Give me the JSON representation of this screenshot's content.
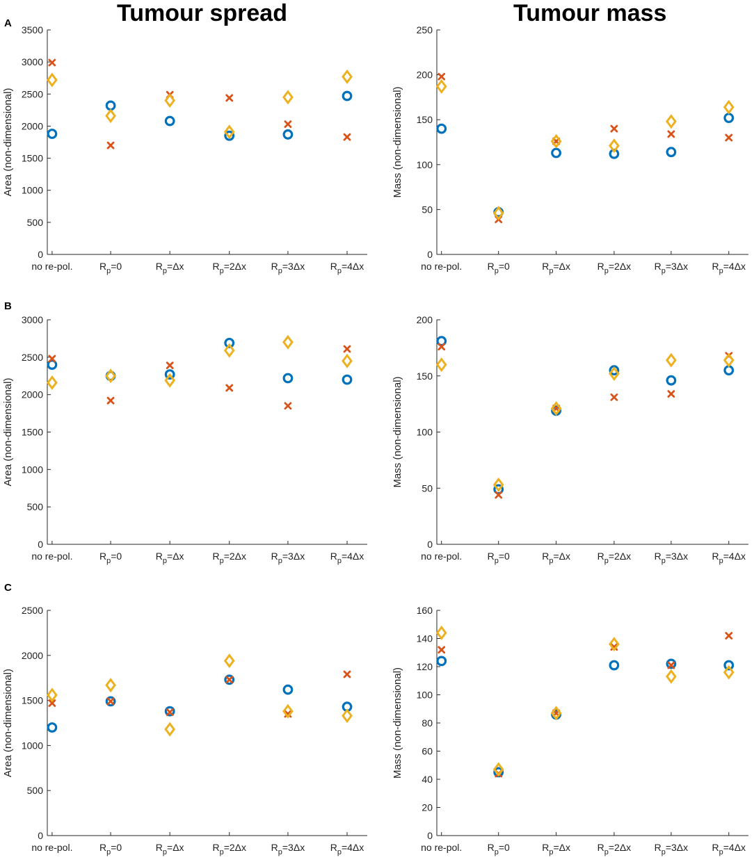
{
  "column_titles": {
    "left": "Tumour spread",
    "right": "Tumour mass"
  },
  "panel_labels": [
    "A",
    "B",
    "C"
  ],
  "colors": {
    "series1": "#0072BD",
    "series2": "#D95319",
    "series3": "#EDB120"
  },
  "chart_data": [
    {
      "type": "scatter",
      "panel": "A",
      "position": "left",
      "title": "Tumour spread",
      "xlabel": "",
      "ylabel": "Area (non-dimensional)",
      "ylim": [
        0,
        3500
      ],
      "yticks": [
        0,
        500,
        1000,
        1500,
        2000,
        2500,
        3000,
        3500
      ],
      "categories": [
        "no re-pol.",
        "Rp=0",
        "Rp=Δx",
        "Rp=2Δx",
        "Rp=3Δx",
        "Rp=4Δx"
      ],
      "series": [
        {
          "name": "circle",
          "marker": "o",
          "values": [
            1880,
            2320,
            2080,
            1850,
            1870,
            2470
          ]
        },
        {
          "name": "cross",
          "marker": "x",
          "values": [
            2990,
            1700,
            2490,
            2440,
            2030,
            1830
          ]
        },
        {
          "name": "diamond",
          "marker": "d",
          "values": [
            2720,
            2160,
            2400,
            1910,
            2450,
            2770
          ]
        }
      ]
    },
    {
      "type": "scatter",
      "panel": "A",
      "position": "right",
      "title": "Tumour mass",
      "xlabel": "",
      "ylabel": "Mass (non-dimensional)",
      "ylim": [
        0,
        250
      ],
      "yticks": [
        0,
        50,
        100,
        150,
        200,
        250
      ],
      "categories": [
        "no re-pol.",
        "Rp=0",
        "Rp=Δx",
        "Rp=2Δx",
        "Rp=3Δx",
        "Rp=4Δx"
      ],
      "series": [
        {
          "name": "circle",
          "marker": "o",
          "values": [
            140,
            47,
            113,
            112,
            114,
            152
          ]
        },
        {
          "name": "cross",
          "marker": "x",
          "values": [
            198,
            39,
            126,
            140,
            134,
            130
          ]
        },
        {
          "name": "diamond",
          "marker": "d",
          "values": [
            187,
            46,
            126,
            121,
            148,
            164
          ]
        }
      ]
    },
    {
      "type": "scatter",
      "panel": "B",
      "position": "left",
      "title": "",
      "xlabel": "",
      "ylabel": "Area (non-dimensional)",
      "ylim": [
        0,
        3000
      ],
      "yticks": [
        0,
        500,
        1000,
        1500,
        2000,
        2500,
        3000
      ],
      "categories": [
        "no re-pol.",
        "Rp=0",
        "Rp=Δx",
        "Rp=2Δx",
        "Rp=3Δx",
        "Rp=4Δx"
      ],
      "series": [
        {
          "name": "circle",
          "marker": "o",
          "values": [
            2400,
            2250,
            2270,
            2690,
            2220,
            2200
          ]
        },
        {
          "name": "cross",
          "marker": "x",
          "values": [
            2480,
            1920,
            2390,
            2090,
            1850,
            2610
          ]
        },
        {
          "name": "diamond",
          "marker": "d",
          "values": [
            2160,
            2250,
            2190,
            2590,
            2700,
            2450
          ]
        }
      ]
    },
    {
      "type": "scatter",
      "panel": "B",
      "position": "right",
      "title": "",
      "xlabel": "",
      "ylabel": "Mass (non-dimensional)",
      "ylim": [
        0,
        200
      ],
      "yticks": [
        0,
        50,
        100,
        150,
        200
      ],
      "categories": [
        "no re-pol.",
        "Rp=0",
        "Rp=Δx",
        "Rp=2Δx",
        "Rp=3Δx",
        "Rp=4Δx"
      ],
      "series": [
        {
          "name": "circle",
          "marker": "o",
          "values": [
            181,
            49,
            119,
            155,
            146,
            155
          ]
        },
        {
          "name": "cross",
          "marker": "x",
          "values": [
            176,
            44,
            121,
            131,
            134,
            168
          ]
        },
        {
          "name": "diamond",
          "marker": "d",
          "values": [
            160,
            53,
            121,
            152,
            164,
            164
          ]
        }
      ]
    },
    {
      "type": "scatter",
      "panel": "C",
      "position": "left",
      "title": "",
      "xlabel": "",
      "ylabel": "Area (non-dimensional)",
      "ylim": [
        0,
        2500
      ],
      "yticks": [
        0,
        500,
        1000,
        1500,
        2000,
        2500
      ],
      "categories": [
        "no re-pol.",
        "Rp=0",
        "Rp=Δx",
        "Rp=2Δx",
        "Rp=3Δx",
        "Rp=4Δx"
      ],
      "series": [
        {
          "name": "circle",
          "marker": "o",
          "values": [
            1200,
            1490,
            1380,
            1730,
            1620,
            1430
          ]
        },
        {
          "name": "cross",
          "marker": "x",
          "values": [
            1470,
            1490,
            1370,
            1730,
            1350,
            1790
          ]
        },
        {
          "name": "diamond",
          "marker": "d",
          "values": [
            1560,
            1670,
            1180,
            1940,
            1380,
            1330
          ]
        }
      ]
    },
    {
      "type": "scatter",
      "panel": "C",
      "position": "right",
      "title": "",
      "xlabel": "",
      "ylabel": "Mass (non-dimensional)",
      "ylim": [
        0,
        160
      ],
      "yticks": [
        0,
        20,
        40,
        60,
        80,
        100,
        120,
        140,
        160
      ],
      "categories": [
        "no re-pol.",
        "Rp=0",
        "Rp=Δx",
        "Rp=2Δx",
        "Rp=3Δx",
        "Rp=4Δx"
      ],
      "series": [
        {
          "name": "circle",
          "marker": "o",
          "values": [
            124,
            45,
            86,
            121,
            122,
            121
          ]
        },
        {
          "name": "cross",
          "marker": "x",
          "values": [
            132,
            44,
            87,
            134,
            121,
            142
          ]
        },
        {
          "name": "diamond",
          "marker": "d",
          "values": [
            144,
            47,
            87,
            136,
            113,
            116
          ]
        }
      ]
    }
  ]
}
